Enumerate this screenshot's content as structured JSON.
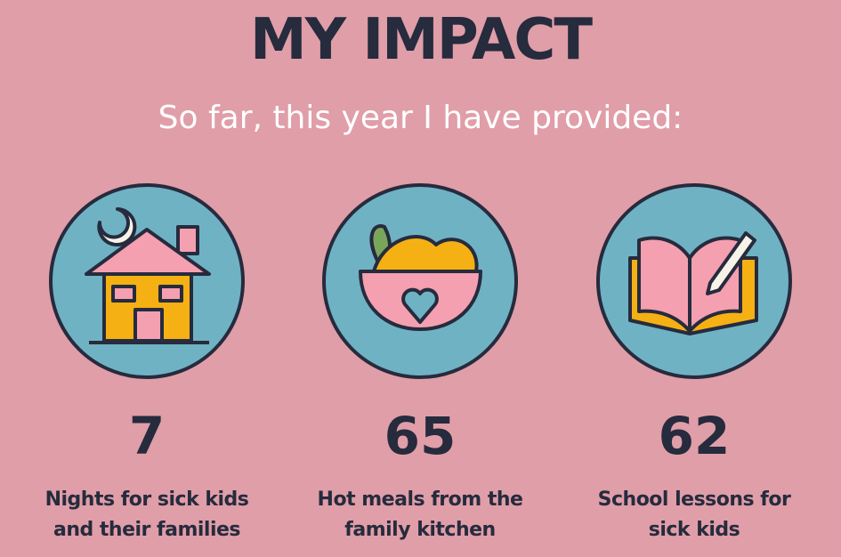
{
  "header": {
    "title": "MY IMPACT",
    "subtitle": "So far, this year I have provided:"
  },
  "items": [
    {
      "value": "7",
      "label_lines": [
        "Nights for sick kids",
        "and their families"
      ]
    },
    {
      "value": "65",
      "label_lines": [
        "Hot meals from the",
        "family kitchen"
      ]
    },
    {
      "value": "62",
      "label_lines": [
        "School lessons for",
        "sick kids"
      ]
    }
  ]
}
